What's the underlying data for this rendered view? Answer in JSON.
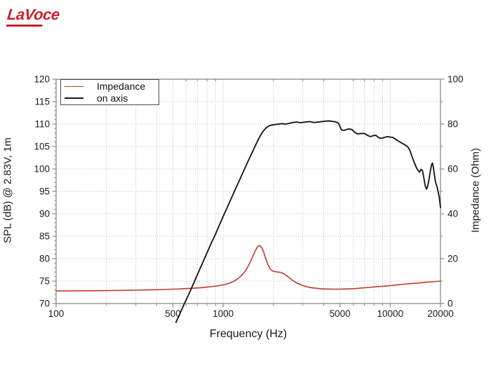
{
  "logo": {
    "text": "LaVoce"
  },
  "colors": {
    "impedance_line": "#bf3b2b",
    "on_axis_line": "#1a1a1a",
    "grid": "#bcbcbc",
    "axis_border": "#8a8a8a",
    "tick_label": "#1a1a1a",
    "legend_border": "#4a4a4a",
    "logo_red": "#cf1f2f",
    "background": "#ffffff"
  },
  "legend": {
    "items": [
      {
        "label": "Impedance",
        "color": "#bf3b2b",
        "thickness": 1.8
      },
      {
        "label": "on axis",
        "color": "#1a1a1a",
        "thickness": 2.2
      }
    ]
  },
  "chart_data": {
    "type": "line",
    "title": "",
    "xlabel": "Frequency (Hz)",
    "ylabel_left": "SPL (dB) @ 2.83V, 1m",
    "ylabel_right": "Impedance (Ohm)",
    "x_scale": "log",
    "x_range": [
      100,
      20000
    ],
    "y_left_range": [
      70,
      120
    ],
    "y_right_range": [
      0,
      100
    ],
    "x_ticks_labeled": [
      100,
      500,
      1000,
      5000,
      10000,
      20000
    ],
    "x_ticks_minor": [
      200,
      300,
      400,
      600,
      700,
      800,
      900,
      2000,
      3000,
      4000,
      6000,
      7000,
      8000,
      9000
    ],
    "y_left_ticks": [
      70,
      75,
      80,
      85,
      90,
      95,
      100,
      105,
      110,
      115,
      120
    ],
    "y_right_ticks": [
      0,
      20,
      40,
      60,
      80,
      100
    ],
    "y_right_minor_step": 10,
    "y_left_minor_step": 1,
    "grid": "dotted",
    "legend_position": "upper-left",
    "series": [
      {
        "name": "Impedance",
        "axis": "right",
        "color": "#bf3b2b",
        "width": 1.6,
        "points": [
          [
            100,
            5.6
          ],
          [
            130,
            5.65
          ],
          [
            160,
            5.7
          ],
          [
            200,
            5.75
          ],
          [
            250,
            5.85
          ],
          [
            300,
            5.95
          ],
          [
            350,
            6.05
          ],
          [
            400,
            6.15
          ],
          [
            450,
            6.25
          ],
          [
            500,
            6.4
          ],
          [
            550,
            6.5
          ],
          [
            600,
            6.65
          ],
          [
            650,
            6.8
          ],
          [
            700,
            6.95
          ],
          [
            750,
            7.1
          ],
          [
            800,
            7.3
          ],
          [
            850,
            7.5
          ],
          [
            900,
            7.75
          ],
          [
            950,
            8.0
          ],
          [
            1000,
            8.3
          ],
          [
            1050,
            8.7
          ],
          [
            1100,
            9.2
          ],
          [
            1150,
            9.8
          ],
          [
            1200,
            10.6
          ],
          [
            1250,
            11.6
          ],
          [
            1300,
            12.8
          ],
          [
            1350,
            14.3
          ],
          [
            1400,
            16.2
          ],
          [
            1450,
            18.4
          ],
          [
            1500,
            20.8
          ],
          [
            1550,
            23.2
          ],
          [
            1600,
            25.2
          ],
          [
            1650,
            25.9
          ],
          [
            1700,
            25.0
          ],
          [
            1750,
            22.8
          ],
          [
            1800,
            20.0
          ],
          [
            1850,
            17.5
          ],
          [
            1900,
            15.8
          ],
          [
            1950,
            14.8
          ],
          [
            2000,
            14.3
          ],
          [
            2100,
            14.1
          ],
          [
            2200,
            13.9
          ],
          [
            2300,
            13.3
          ],
          [
            2400,
            12.4
          ],
          [
            2500,
            11.3
          ],
          [
            2600,
            10.3
          ],
          [
            2700,
            9.5
          ],
          [
            2800,
            8.9
          ],
          [
            3000,
            8.0
          ],
          [
            3200,
            7.4
          ],
          [
            3400,
            7.0
          ],
          [
            3600,
            6.8
          ],
          [
            3800,
            6.6
          ],
          [
            4000,
            6.5
          ],
          [
            4500,
            6.4
          ],
          [
            5000,
            6.4
          ],
          [
            5500,
            6.5
          ],
          [
            6000,
            6.6
          ],
          [
            6500,
            6.8
          ],
          [
            7000,
            7.0
          ],
          [
            7500,
            7.2
          ],
          [
            8000,
            7.4
          ],
          [
            9000,
            7.7
          ],
          [
            10000,
            8.0
          ],
          [
            11000,
            8.3
          ],
          [
            12000,
            8.6
          ],
          [
            13000,
            8.8
          ],
          [
            14000,
            9.0
          ],
          [
            15000,
            9.2
          ],
          [
            16000,
            9.4
          ],
          [
            17000,
            9.6
          ],
          [
            18000,
            9.7
          ],
          [
            19000,
            9.85
          ],
          [
            20000,
            10.0
          ]
        ]
      },
      {
        "name": "on axis",
        "axis": "left",
        "color": "#1a1a1a",
        "width": 1.9,
        "points": [
          [
            522,
            65.8
          ],
          [
            586,
            70
          ],
          [
            620,
            71.9
          ],
          [
            660,
            74.2
          ],
          [
            700,
            76.4
          ],
          [
            750,
            78.9
          ],
          [
            800,
            81.3
          ],
          [
            850,
            83.5
          ],
          [
            900,
            85.5
          ],
          [
            950,
            87.5
          ],
          [
            1000,
            89.4
          ],
          [
            1060,
            91.5
          ],
          [
            1120,
            93.5
          ],
          [
            1180,
            95.4
          ],
          [
            1250,
            97.4
          ],
          [
            1320,
            99.4
          ],
          [
            1400,
            101.5
          ],
          [
            1480,
            103.4
          ],
          [
            1560,
            105.2
          ],
          [
            1640,
            106.9
          ],
          [
            1720,
            108.2
          ],
          [
            1800,
            109.1
          ],
          [
            1880,
            109.6
          ],
          [
            1960,
            109.8
          ],
          [
            2050,
            109.9
          ],
          [
            2150,
            110.0
          ],
          [
            2250,
            110.1
          ],
          [
            2350,
            110.0
          ],
          [
            2450,
            110.1
          ],
          [
            2600,
            110.35
          ],
          [
            2750,
            110.45
          ],
          [
            2900,
            110.3
          ],
          [
            3100,
            110.45
          ],
          [
            3300,
            110.55
          ],
          [
            3500,
            110.35
          ],
          [
            3700,
            110.45
          ],
          [
            3900,
            110.55
          ],
          [
            4100,
            110.65
          ],
          [
            4300,
            110.7
          ],
          [
            4500,
            110.6
          ],
          [
            4700,
            110.5
          ],
          [
            4900,
            110.2
          ],
          [
            5100,
            108.7
          ],
          [
            5300,
            108.6
          ],
          [
            5600,
            108.9
          ],
          [
            5900,
            108.8
          ],
          [
            6100,
            108.2
          ],
          [
            6400,
            107.8
          ],
          [
            6700,
            107.9
          ],
          [
            7000,
            107.9
          ],
          [
            7300,
            107.5
          ],
          [
            7600,
            107.2
          ],
          [
            7900,
            107.4
          ],
          [
            8200,
            107.5
          ],
          [
            8500,
            107.0
          ],
          [
            8800,
            106.8
          ],
          [
            9200,
            107.0
          ],
          [
            9600,
            107.2
          ],
          [
            10000,
            107.1
          ],
          [
            10400,
            107.0
          ],
          [
            10800,
            106.6
          ],
          [
            11200,
            106.2
          ],
          [
            11700,
            105.8
          ],
          [
            12200,
            105.4
          ],
          [
            12700,
            105.0
          ],
          [
            13100,
            104.2
          ],
          [
            13500,
            102.8
          ],
          [
            13900,
            101.5
          ],
          [
            14300,
            100.4
          ],
          [
            14700,
            99.6
          ],
          [
            15000,
            99.3
          ],
          [
            15300,
            99.9
          ],
          [
            15600,
            99.6
          ],
          [
            15900,
            98.0
          ],
          [
            16200,
            96.2
          ],
          [
            16500,
            95.5
          ],
          [
            16800,
            96.3
          ],
          [
            17100,
            97.8
          ],
          [
            17400,
            99.6
          ],
          [
            17700,
            101.0
          ],
          [
            17900,
            101.3
          ],
          [
            18100,
            100.5
          ],
          [
            18400,
            98.6
          ],
          [
            18700,
            97.0
          ],
          [
            19000,
            96.2
          ],
          [
            19300,
            95.2
          ],
          [
            19700,
            93.5
          ],
          [
            20000,
            91.4
          ]
        ]
      }
    ]
  }
}
